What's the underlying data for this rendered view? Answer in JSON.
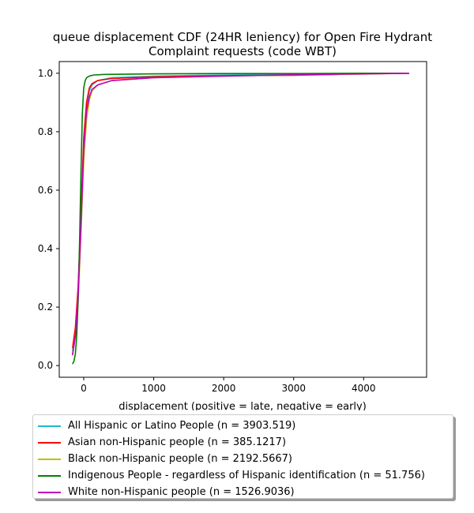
{
  "chart_data": {
    "type": "line",
    "title": "queue displacement CDF (24HR leniency) for Open Fire Hydrant Complaint  requests (code WBT)",
    "title_lines": [
      "queue displacement CDF (24HR leniency) for Open Fire Hydrant",
      "Complaint  requests (code WBT)"
    ],
    "xlabel": "displacement (positive = late, negative = early)",
    "ylabel": "",
    "xlim": [
      -350,
      4900
    ],
    "ylim": [
      -0.04,
      1.04
    ],
    "x_ticks": [
      0,
      1000,
      2000,
      3000,
      4000
    ],
    "y_ticks": [
      0.0,
      0.2,
      0.4,
      0.6,
      0.8,
      1.0
    ],
    "x_tick_labels": [
      "0",
      "1000",
      "2000",
      "3000",
      "4000"
    ],
    "y_tick_labels": [
      "0.0",
      "0.2",
      "0.4",
      "0.6",
      "0.8",
      "1.0"
    ],
    "grid": false,
    "legend_position": "below",
    "series": [
      {
        "name": "All Hispanic or Latino People (n = 3903.519)",
        "color": "#17becf",
        "x": [
          -160,
          -120,
          -80,
          -40,
          0,
          40,
          80,
          120,
          200,
          400,
          1000,
          2000,
          3000,
          4000,
          4650
        ],
        "y": [
          0.05,
          0.12,
          0.26,
          0.5,
          0.76,
          0.89,
          0.94,
          0.96,
          0.975,
          0.985,
          0.99,
          0.994,
          0.996,
          0.998,
          1.0
        ]
      },
      {
        "name": "Asian non-Hispanic people (n = 385.1217)",
        "color": "#ff0000",
        "x": [
          -160,
          -120,
          -80,
          -40,
          0,
          40,
          80,
          120,
          200,
          400,
          1000,
          2000,
          3000,
          3500,
          4000,
          4650
        ],
        "y": [
          0.06,
          0.13,
          0.27,
          0.52,
          0.78,
          0.9,
          0.95,
          0.965,
          0.975,
          0.982,
          0.988,
          0.992,
          0.993,
          0.995,
          0.999,
          1.0
        ]
      },
      {
        "name": "Black non-Hispanic people (n = 2192.5667)",
        "color": "#bfbf00",
        "x": [
          -160,
          -120,
          -80,
          -40,
          0,
          40,
          80,
          120,
          200,
          400,
          1000,
          2000,
          3000,
          4000,
          4650
        ],
        "y": [
          0.04,
          0.1,
          0.22,
          0.45,
          0.7,
          0.84,
          0.91,
          0.94,
          0.96,
          0.975,
          0.985,
          0.99,
          0.994,
          0.997,
          1.0
        ]
      },
      {
        "name": "Indigenous People - regardless of Hispanic identification (n = 51.756)",
        "color": "#008000",
        "x": [
          -160,
          -140,
          -120,
          -100,
          -80,
          -60,
          -40,
          -20,
          0,
          20,
          40,
          60,
          80,
          100,
          150,
          300,
          1000,
          2000,
          3000,
          4000,
          4650
        ],
        "y": [
          0.005,
          0.015,
          0.04,
          0.1,
          0.22,
          0.42,
          0.66,
          0.86,
          0.95,
          0.975,
          0.984,
          0.988,
          0.99,
          0.992,
          0.994,
          0.996,
          0.998,
          0.999,
          0.999,
          1.0,
          1.0
        ]
      },
      {
        "name": "White non-Hispanic people (n = 1526.9036)",
        "color": "#bf00bf",
        "x": [
          -160,
          -120,
          -80,
          -40,
          0,
          40,
          80,
          120,
          200,
          400,
          1000,
          2000,
          3000,
          4000,
          4650
        ],
        "y": [
          0.035,
          0.1,
          0.24,
          0.48,
          0.74,
          0.87,
          0.92,
          0.945,
          0.96,
          0.975,
          0.985,
          0.99,
          0.995,
          0.998,
          1.0
        ]
      }
    ]
  }
}
